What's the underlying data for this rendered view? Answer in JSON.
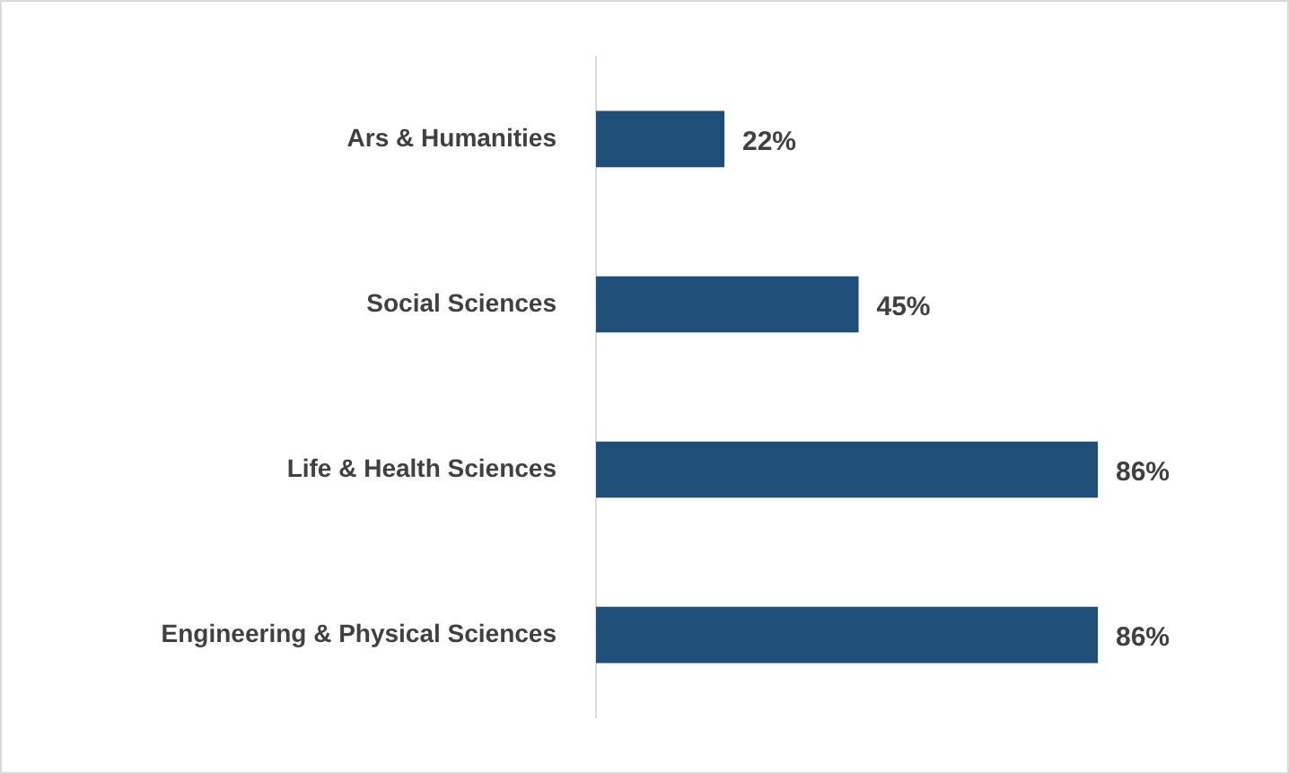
{
  "chart_data": {
    "type": "bar",
    "orientation": "horizontal",
    "categories": [
      "Ars & Humanities",
      "Social Sciences",
      "Life & Health Sciences",
      "Engineering & Physical Sciences"
    ],
    "values": [
      22,
      45,
      86,
      86
    ],
    "value_labels": [
      "22%",
      "45%",
      "86%",
      "86%"
    ],
    "color": "#1f4e79",
    "legend": false
  }
}
